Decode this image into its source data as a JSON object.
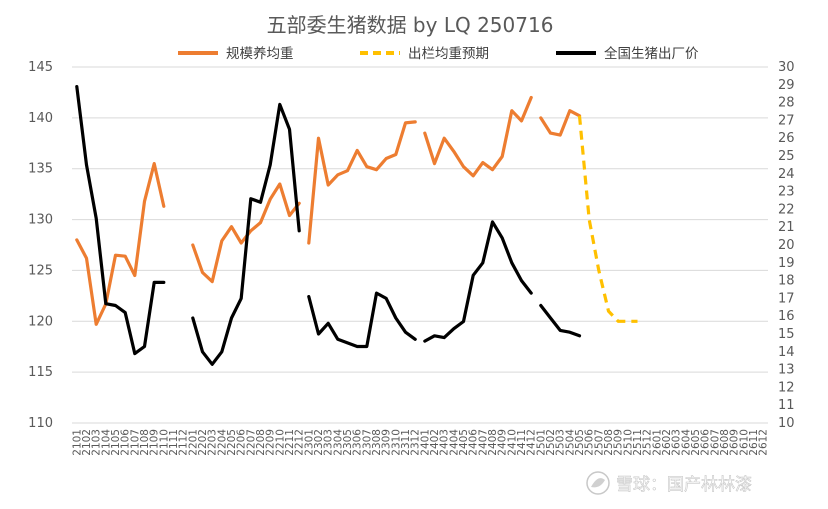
{
  "chart_data": {
    "type": "line",
    "title": "五部委生猪数据 by LQ 250716",
    "y_left": {
      "range": [
        110,
        145
      ],
      "ticks": [
        110,
        115,
        120,
        125,
        130,
        135,
        140,
        145
      ]
    },
    "y_right": {
      "range": [
        10,
        30
      ],
      "ticks": [
        10,
        11,
        12,
        13,
        14,
        15,
        16,
        17,
        18,
        19,
        20,
        21,
        22,
        23,
        24,
        25,
        26,
        27,
        28,
        29,
        30
      ]
    },
    "x_years": [
      "21",
      "22",
      "23",
      "24",
      "25",
      "26"
    ],
    "grid": true,
    "legend_position": "top",
    "series": [
      {
        "name": "规模养均重",
        "axis": "left",
        "color": "#ED7D31",
        "dash": false,
        "segments": [
          {
            "start": 1,
            "values": [
              128.0,
              126.2,
              119.7,
              121.7,
              126.5,
              126.4,
              124.5,
              131.8,
              135.5,
              131.3
            ]
          },
          {
            "start": 13,
            "values": [
              127.5,
              124.8,
              123.9,
              127.9,
              129.3,
              127.7,
              128.9,
              129.7,
              132.0,
              133.5,
              130.4,
              131.6
            ]
          },
          {
            "start": 25,
            "values": [
              127.7,
              138.0,
              133.4,
              134.4,
              134.8,
              136.8,
              135.2,
              134.9,
              136.0,
              136.4,
              139.5,
              139.6
            ]
          },
          {
            "start": 37,
            "values": [
              138.5,
              135.5,
              138.0,
              136.7,
              135.2,
              134.3,
              135.6,
              134.9,
              136.2,
              140.7,
              139.7,
              142.0
            ]
          },
          {
            "start": 49,
            "values": [
              140.0,
              138.5,
              138.3,
              140.7,
              140.2
            ]
          }
        ]
      },
      {
        "name": "出栏均重预期",
        "axis": "left",
        "color": "#FFC000",
        "dash": true,
        "segments": [
          {
            "start": 53,
            "values": [
              140.2,
              130.0,
              125.0,
              121.0,
              120.0,
              120.0,
              120.0
            ]
          }
        ]
      },
      {
        "name": "全国生猪出厂价",
        "axis": "right",
        "color": "#000000",
        "dash": false,
        "segments": [
          {
            "start": 1,
            "values": [
              28.9,
              24.5,
              21.5,
              16.7,
              16.6,
              16.2,
              13.9,
              14.3,
              17.9,
              17.9
            ]
          },
          {
            "start": 13,
            "values": [
              15.9,
              14.0,
              13.3,
              14.0,
              15.9,
              17.0,
              22.6,
              22.4,
              24.5,
              27.9,
              26.5,
              20.8
            ]
          },
          {
            "start": 25,
            "values": [
              17.1,
              15.0,
              15.6,
              14.7,
              14.5,
              14.3,
              14.3,
              17.3,
              17.0,
              15.9,
              15.1,
              14.7
            ]
          },
          {
            "start": 37,
            "values": [
              14.6,
              14.9,
              14.8,
              15.3,
              15.7,
              18.3,
              19.0,
              21.3,
              20.4,
              19.0,
              18.0,
              17.3
            ]
          },
          {
            "start": 49,
            "values": [
              16.6,
              15.9,
              15.2,
              15.1,
              14.9
            ]
          }
        ]
      }
    ]
  }
}
